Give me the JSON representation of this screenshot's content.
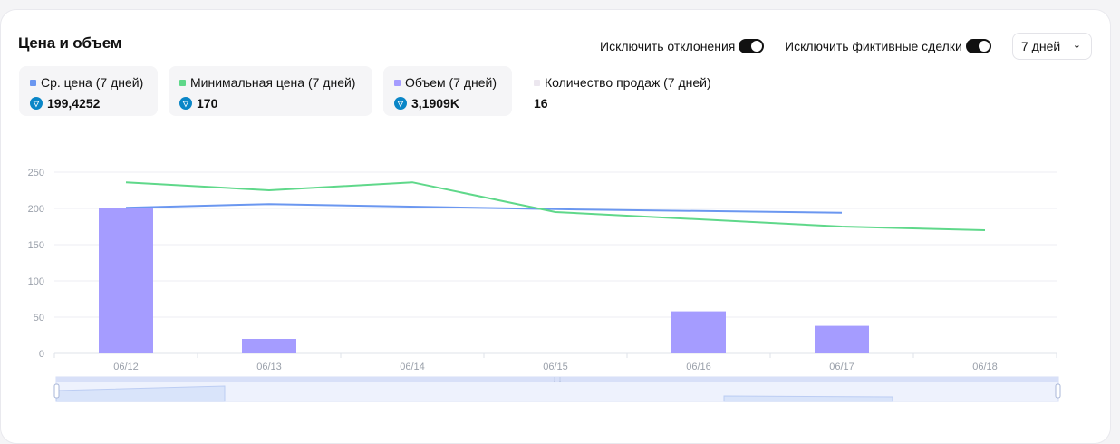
{
  "header": {
    "title": "Цена и объем"
  },
  "controls": {
    "exclude_outliers_label": "Исключить отклонения",
    "exclude_outliers_on": true,
    "exclude_wash_label": "Исключить фиктивные сделки",
    "exclude_wash_on": true,
    "range_value": "7 дней"
  },
  "stats": [
    {
      "label": "Ср. цена (7 дней)",
      "value": "199,4252",
      "color": "#6b97f0",
      "coin": true
    },
    {
      "label": "Минимальная цена (7 дней)",
      "value": "170",
      "color": "#5fd88a",
      "coin": true
    },
    {
      "label": "Объем (7 дней)",
      "value": "3,1909K",
      "color": "#a59cff",
      "coin": true
    },
    {
      "label": "Количество продаж (7 дней)",
      "value": "16",
      "color": "#ece7ef",
      "coin": false
    }
  ],
  "colors": {
    "avg": "#6b97f0",
    "floor": "#5fd88a",
    "volume": "#a59cff",
    "coin": "#0a86c7"
  },
  "chart_data": {
    "type": "bar",
    "categories": [
      "06/12",
      "06/13",
      "06/14",
      "06/15",
      "06/16",
      "06/17",
      "06/18"
    ],
    "ylim": [
      0,
      250
    ],
    "yticks": [
      0,
      50,
      100,
      150,
      200,
      250
    ],
    "grid": true,
    "series": [
      {
        "name": "Объем (7 дней)",
        "type": "bar",
        "values": [
          200,
          20,
          0,
          0,
          58,
          38,
          0
        ]
      },
      {
        "name": "Ср. цена (7 дней)",
        "type": "line",
        "values": [
          201,
          206,
          null,
          199,
          null,
          194,
          null
        ]
      },
      {
        "name": "Минимальная цена (7 дней)",
        "type": "line",
        "values": [
          236,
          225,
          236,
          195,
          null,
          175,
          170
        ]
      }
    ]
  }
}
